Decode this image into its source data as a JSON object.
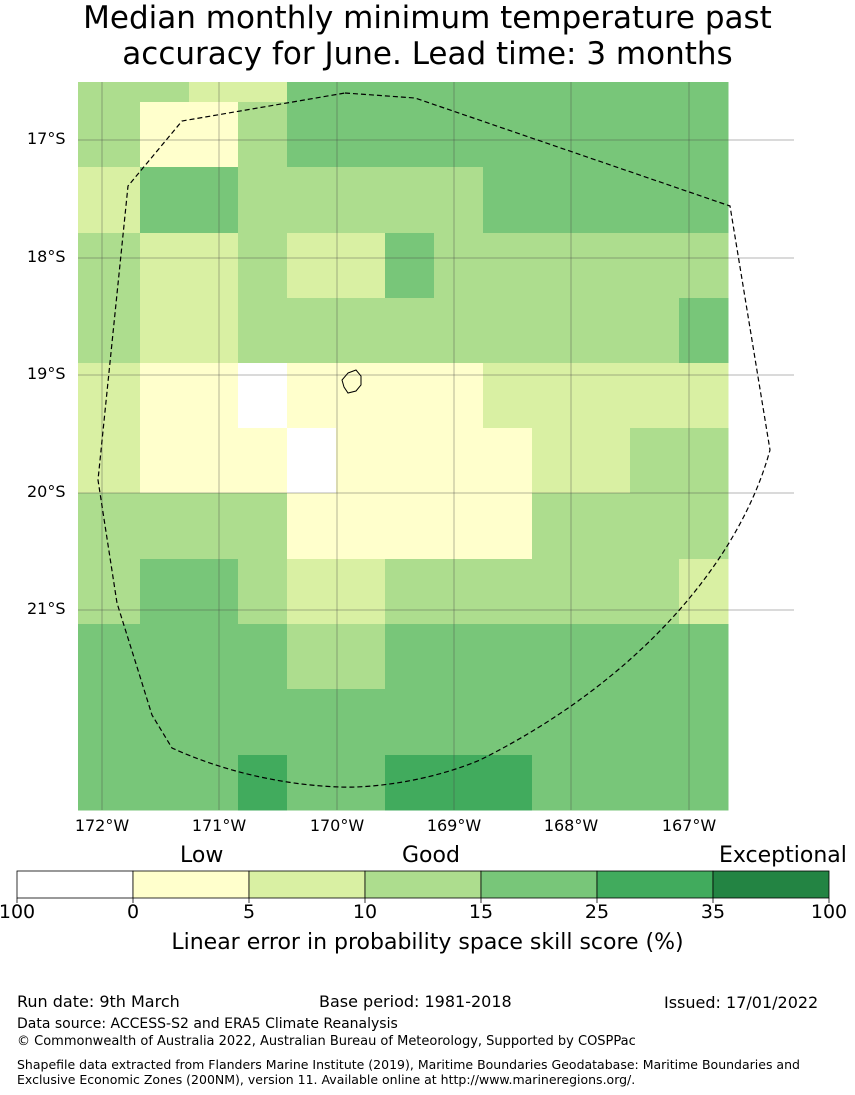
{
  "title": {
    "line1": "Median monthly minimum temperature past",
    "line2": "accuracy for June. Lead time: 3 months"
  },
  "map": {
    "y_ticks": [
      "17°S",
      "18°S",
      "19°S",
      "20°S",
      "21°S"
    ],
    "x_ticks": [
      "172°W",
      "171°W",
      "170°W",
      "169°W",
      "168°W",
      "167°W"
    ],
    "grid": true,
    "cell_colors": [
      "#ffffff",
      "#ffffcc",
      "#d9f0a3",
      "#addd8e",
      "#78c679",
      "#41ab5d",
      "#238443"
    ],
    "cell_classes": [
      [
        3,
        3,
        2,
        2,
        4,
        4,
        4,
        4,
        4,
        4,
        4,
        4,
        4
      ],
      [
        3,
        1,
        1,
        3,
        4,
        4,
        4,
        4,
        4,
        4,
        4,
        4,
        4
      ],
      [
        2,
        4,
        4,
        3,
        3,
        3,
        3,
        3,
        4,
        4,
        4,
        4,
        4
      ],
      [
        3,
        2,
        2,
        3,
        2,
        2,
        4,
        3,
        3,
        3,
        3,
        3,
        3
      ],
      [
        3,
        2,
        2,
        3,
        3,
        3,
        3,
        3,
        3,
        3,
        3,
        3,
        4
      ],
      [
        2,
        1,
        1,
        0,
        1,
        1,
        1,
        1,
        2,
        2,
        2,
        2,
        2
      ],
      [
        2,
        1,
        1,
        1,
        0,
        1,
        1,
        1,
        1,
        2,
        2,
        3,
        3
      ],
      [
        3,
        3,
        3,
        3,
        1,
        1,
        1,
        1,
        1,
        3,
        3,
        3,
        3
      ],
      [
        3,
        4,
        4,
        3,
        2,
        2,
        3,
        3,
        3,
        3,
        3,
        3,
        2
      ],
      [
        4,
        4,
        4,
        4,
        3,
        3,
        4,
        4,
        4,
        4,
        4,
        4,
        4
      ],
      [
        4,
        4,
        4,
        4,
        4,
        4,
        4,
        4,
        4,
        4,
        4,
        4,
        4
      ],
      [
        4,
        4,
        4,
        5,
        4,
        4,
        5,
        5,
        5,
        4,
        4,
        4,
        4
      ]
    ]
  },
  "legend": {
    "categories": [
      "Low",
      "Good",
      "Exceptional"
    ],
    "tick_labels": [
      "100",
      "0",
      "5",
      "10",
      "15",
      "25",
      "35",
      "100"
    ],
    "label": "Linear error in probability space skill score (%)"
  },
  "footer": {
    "run_date": "Run date: 9th March",
    "base_period": "Base period: 1981-2018",
    "issued": "Issued: 17/01/2022",
    "data_source": "Data source: ACCESS-S2 and ERA5 Climate Reanalysis",
    "copyright": "© Commonwealth of Australia 2022, Australian Bureau of Meteorology, Supported by COSPPac",
    "shapefile": "Shapefile data extracted from Flanders Marine Institute (2019), Maritime Boundaries Geodatabase: Maritime Boundaries and Exclusive Economic Zones (200NM), version 11. Available online at http://www.marineregions.org/."
  }
}
